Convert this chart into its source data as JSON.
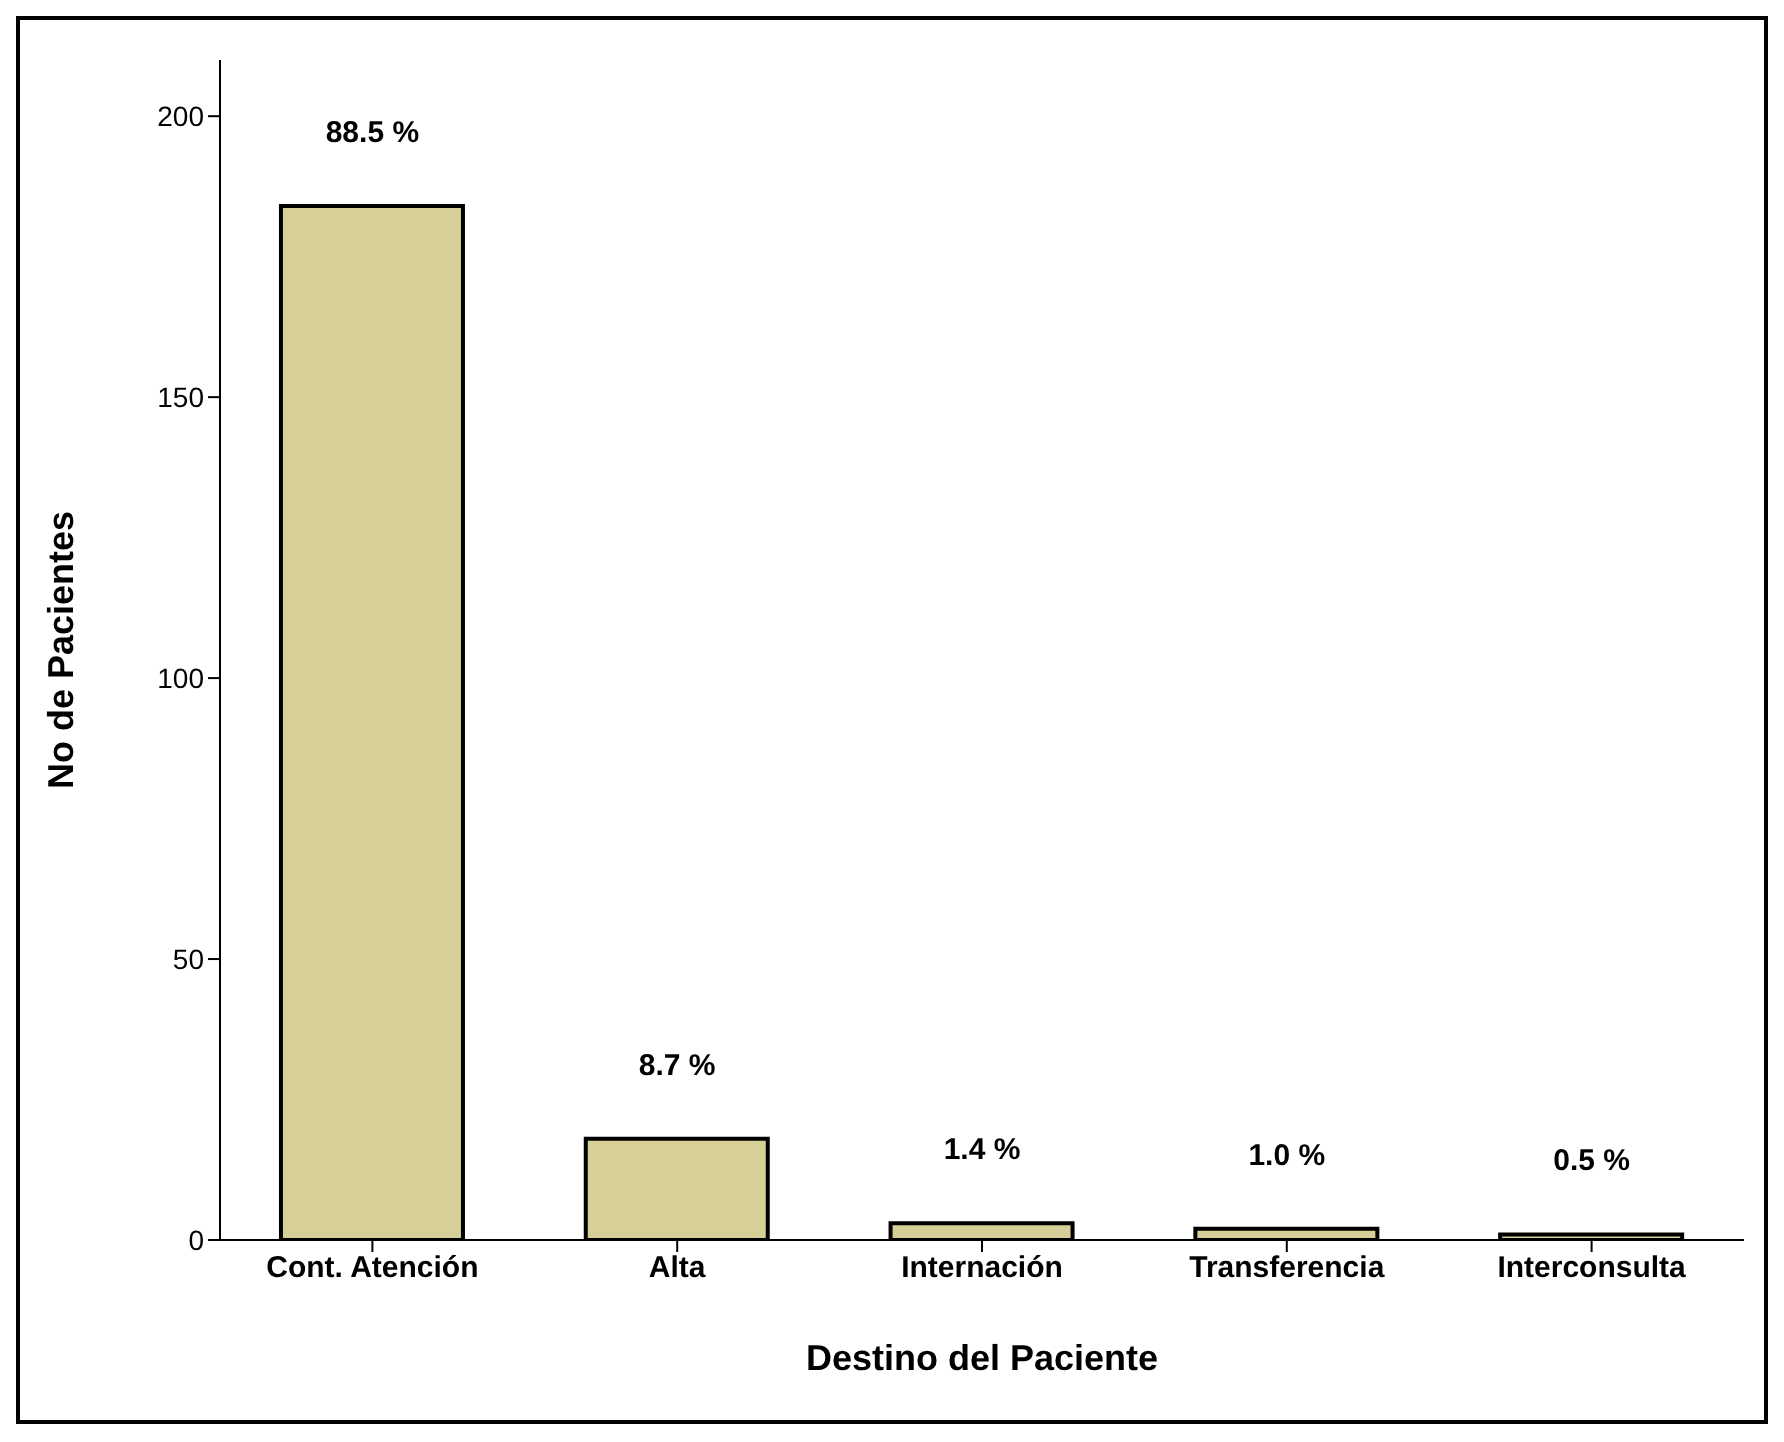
{
  "chart_data": {
    "type": "bar",
    "xlabel": "Destino del Paciente",
    "ylabel": "No de Pacientes",
    "categories": [
      "Cont. Atención",
      "Alta",
      "Internación",
      "Transferencia",
      "Interconsulta"
    ],
    "values": [
      184,
      18,
      3,
      2,
      1
    ],
    "annotations": [
      {
        "text": "88.5 %",
        "x": "Cont. Atención",
        "y": 184
      },
      {
        "text": "8.7 %",
        "x": "Alta",
        "y": 18
      },
      {
        "text": "1.4 %",
        "x": "Internación",
        "y": 3
      },
      {
        "text": "1.0 %",
        "x": "Transferencia",
        "y": 2
      },
      {
        "text": "0.5 %",
        "x": "Interconsulta",
        "y": 1
      }
    ],
    "color": "#d6cf97",
    "ylim": [
      0,
      210
    ],
    "yticks": [
      0,
      50,
      100,
      150,
      200
    ],
    "grid": false
  }
}
